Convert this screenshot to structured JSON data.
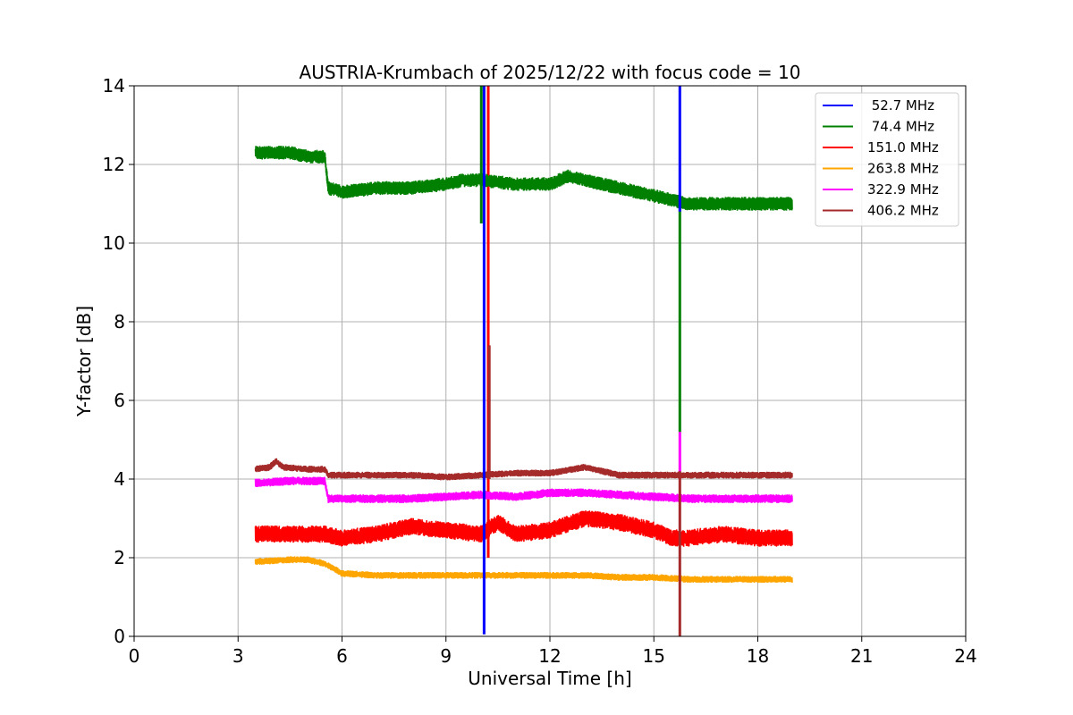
{
  "chart_data": {
    "type": "line",
    "title": "AUSTRIA-Krumbach of 2025/12/22 with focus code = 10",
    "xlabel": "Universal Time [h]",
    "ylabel": "Y-factor [dB]",
    "xlim": [
      0,
      24
    ],
    "ylim": [
      0,
      14
    ],
    "xticks": [
      0,
      3,
      6,
      9,
      12,
      15,
      18,
      21,
      24
    ],
    "yticks": [
      0,
      2,
      4,
      6,
      8,
      10,
      12,
      14
    ],
    "grid": true,
    "legend_position": "top-right",
    "series": [
      {
        "name": " 52.7 MHz",
        "color": "#0000ff",
        "x": [
          10.05,
          10.1,
          10.12,
          10.15,
          15.75
        ],
        "y": [
          1.4,
          0.1,
          0.2,
          14,
          14
        ],
        "spikes": [
          {
            "x": 10.1,
            "y0": 0.05,
            "y1": 14
          },
          {
            "x": 15.75,
            "y0": 10.8,
            "y1": 14
          }
        ]
      },
      {
        "name": " 74.4 MHz",
        "color": "#008000",
        "x": [
          3.5,
          4.0,
          4.5,
          5.0,
          5.5,
          5.6,
          6.0,
          7.0,
          8.0,
          9.0,
          9.5,
          10.0,
          11.0,
          12.0,
          12.5,
          13.0,
          14.0,
          14.5,
          15.0,
          15.5,
          16.0,
          17.0,
          18.0,
          19.0
        ],
        "y": [
          12.3,
          12.3,
          12.3,
          12.2,
          12.2,
          11.4,
          11.3,
          11.4,
          11.4,
          11.5,
          11.6,
          11.6,
          11.5,
          11.5,
          11.7,
          11.6,
          11.4,
          11.3,
          11.2,
          11.1,
          11.0,
          11.0,
          11.0,
          11.0
        ],
        "spikes": [
          {
            "x": 10.02,
            "y0": 10.5,
            "y1": 14
          },
          {
            "x": 15.75,
            "y0": 5.2,
            "y1": 11.0
          }
        ]
      },
      {
        "name": "151.0 MHz",
        "color": "#ff0000",
        "x": [
          3.5,
          4.5,
          5.5,
          6.0,
          7.0,
          8.0,
          9.0,
          10.0,
          10.5,
          11.0,
          12.0,
          13.0,
          14.0,
          15.0,
          15.5,
          16.0,
          17.0,
          18.0,
          19.0
        ],
        "y": [
          2.6,
          2.6,
          2.6,
          2.5,
          2.6,
          2.8,
          2.7,
          2.6,
          2.9,
          2.6,
          2.7,
          3.0,
          2.9,
          2.7,
          2.5,
          2.5,
          2.6,
          2.5,
          2.5
        ],
        "spikes": [
          {
            "x": 10.22,
            "y0": 2.0,
            "y1": 14
          }
        ]
      },
      {
        "name": "263.8 MHz",
        "color": "#ffa500",
        "x": [
          3.5,
          4.5,
          5.0,
          5.5,
          6.0,
          7.0,
          8.0,
          9.0,
          10.0,
          11.0,
          12.0,
          13.0,
          14.0,
          15.0,
          16.0,
          17.0,
          18.0,
          19.0
        ],
        "y": [
          1.9,
          1.95,
          1.95,
          1.85,
          1.6,
          1.55,
          1.55,
          1.55,
          1.55,
          1.55,
          1.55,
          1.55,
          1.5,
          1.5,
          1.45,
          1.45,
          1.45,
          1.45
        ],
        "spikes": []
      },
      {
        "name": "322.9 MHz",
        "color": "#ff00ff",
        "x": [
          3.5,
          4.5,
          5.5,
          5.6,
          6.0,
          7.0,
          8.0,
          9.0,
          10.0,
          11.0,
          12.0,
          13.0,
          14.0,
          15.0,
          16.0,
          17.0,
          18.0,
          19.0
        ],
        "y": [
          3.9,
          3.95,
          3.95,
          3.5,
          3.5,
          3.5,
          3.5,
          3.55,
          3.6,
          3.55,
          3.65,
          3.65,
          3.6,
          3.55,
          3.5,
          3.5,
          3.5,
          3.5
        ],
        "spikes": [
          {
            "x": 15.75,
            "y0": 4.0,
            "y1": 5.2
          }
        ]
      },
      {
        "name": "406.2 MHz",
        "color": "#a52a2a",
        "x": [
          3.5,
          3.9,
          4.1,
          4.3,
          5.0,
          5.5,
          5.6,
          6.0,
          7.0,
          8.0,
          9.0,
          10.0,
          11.0,
          12.0,
          13.0,
          14.0,
          15.0,
          16.0,
          17.0,
          18.0,
          19.0
        ],
        "y": [
          4.25,
          4.3,
          4.45,
          4.3,
          4.25,
          4.25,
          4.1,
          4.1,
          4.1,
          4.1,
          4.05,
          4.1,
          4.15,
          4.15,
          4.3,
          4.1,
          4.1,
          4.1,
          4.1,
          4.1,
          4.1
        ],
        "spikes": [
          {
            "x": 10.25,
            "y0": 4.0,
            "y1": 7.4
          },
          {
            "x": 15.75,
            "y0": 0.0,
            "y1": 4.2
          }
        ]
      }
    ]
  }
}
